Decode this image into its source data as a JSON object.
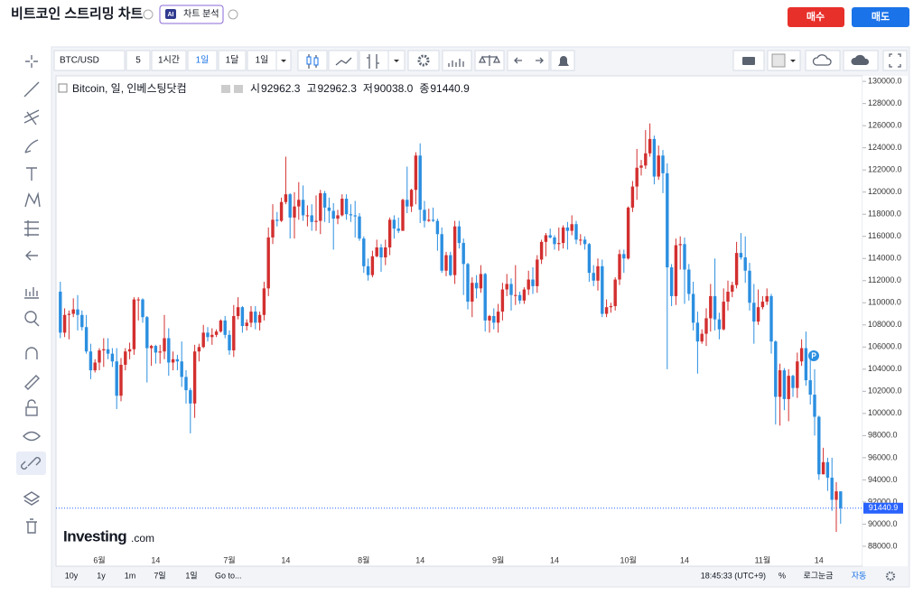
{
  "header": {
    "title": "비트코인 스트리밍 차트",
    "ai_badge": "AI",
    "ai_button": "차트 분석",
    "buy": "매수",
    "sell": "매도"
  },
  "toolbar": {
    "symbol": "BTC/USD",
    "intervals": [
      "5",
      "1시간",
      "1일",
      "1달",
      "1일"
    ]
  },
  "footer": {
    "ranges": [
      "10y",
      "1y",
      "1m",
      "7일",
      "1일"
    ],
    "goto": "Go to...",
    "time": "18:45:33 (UTC+9)",
    "percent": "%",
    "log": "로그눈금",
    "auto": "자동"
  },
  "chart_data": {
    "type": "candlestick",
    "title": "Bitcoin, 일, 인베스팅닷컴",
    "ohlc_legend": [
      {
        "name": "시",
        "label": "92962.3"
      },
      {
        "name": "고",
        "label": "92962.3"
      },
      {
        "name": "저",
        "label": "90038.0"
      },
      {
        "name": "종",
        "label": "91440.9"
      }
    ],
    "logo": {
      "main": "Investing",
      "suffix": ".com"
    },
    "up_color": "#d32f2f",
    "down_color": "#2b8fe0",
    "grid": false,
    "ylim": [
      86200,
      130500
    ],
    "yticks": [
      {
        "value": 88000,
        "label": "88000.0"
      },
      {
        "value": 90000,
        "label": "90000.0"
      },
      {
        "value": 92000,
        "label": "92000.0"
      },
      {
        "value": 94000,
        "label": "94000.0"
      },
      {
        "value": 96000,
        "label": "96000.0"
      },
      {
        "value": 98000,
        "label": "98000.0"
      },
      {
        "value": 100000,
        "label": "100000.0"
      },
      {
        "value": 102000,
        "label": "102000.0"
      },
      {
        "value": 104000,
        "label": "104000.0"
      },
      {
        "value": 106000,
        "label": "106000.0"
      },
      {
        "value": 108000,
        "label": "108000.0"
      },
      {
        "value": 110000,
        "label": "110000.0"
      },
      {
        "value": 112000,
        "label": "112000.0"
      },
      {
        "value": 114000,
        "label": "114000.0"
      },
      {
        "value": 116000,
        "label": "116000.0"
      },
      {
        "value": 118000,
        "label": "118000.0"
      },
      {
        "value": 120000,
        "label": "120000.0"
      },
      {
        "value": 122000,
        "label": "122000.0"
      },
      {
        "value": 124000,
        "label": "124000.0"
      },
      {
        "value": 126000,
        "label": "126000.0"
      },
      {
        "value": 128000,
        "label": "128000.0"
      },
      {
        "value": 130000,
        "label": "130000.0"
      }
    ],
    "categories": [
      null,
      null,
      null,
      null,
      null,
      null,
      null,
      null,
      null,
      "6월",
      null,
      null,
      null,
      null,
      null,
      null,
      null,
      null,
      null,
      null,
      null,
      null,
      "14",
      null,
      null,
      null,
      null,
      null,
      null,
      null,
      null,
      null,
      null,
      null,
      null,
      null,
      null,
      null,
      null,
      "7월",
      null,
      null,
      null,
      null,
      null,
      null,
      null,
      null,
      null,
      null,
      null,
      null,
      "14",
      null,
      null,
      null,
      null,
      null,
      null,
      null,
      null,
      null,
      null,
      null,
      null,
      null,
      null,
      null,
      null,
      null,
      "8월",
      null,
      null,
      null,
      null,
      null,
      null,
      null,
      null,
      null,
      null,
      null,
      null,
      "14",
      null,
      null,
      null,
      null,
      null,
      null,
      null,
      null,
      null,
      null,
      null,
      null,
      null,
      null,
      null,
      null,
      null,
      "9월",
      null,
      null,
      null,
      null,
      null,
      null,
      null,
      null,
      null,
      null,
      null,
      null,
      "14",
      null,
      null,
      null,
      null,
      null,
      null,
      null,
      null,
      null,
      null,
      null,
      null,
      null,
      null,
      null,
      null,
      "10월",
      null,
      null,
      null,
      null,
      null,
      null,
      null,
      null,
      null,
      null,
      null,
      null,
      "14",
      null,
      null,
      null,
      null,
      null,
      null,
      null,
      null,
      null,
      null,
      null,
      null,
      null,
      null,
      null,
      null,
      null,
      "11월",
      null,
      null,
      null,
      null,
      null,
      null,
      null,
      null,
      null,
      null,
      null,
      null,
      "14",
      null,
      null,
      null,
      null,
      null
    ],
    "open": [
      111000,
      107300,
      108900,
      109000,
      109400,
      108900,
      107800,
      105600,
      103900,
      104600,
      105700,
      105800,
      105400,
      104700,
      101600,
      104400,
      105600,
      105800,
      110300,
      110300,
      108700,
      105900,
      106100,
      105500,
      105600,
      106800,
      104600,
      104900,
      104700,
      103300,
      102100,
      100900,
      105600,
      106000,
      107300,
      106900,
      107100,
      107400,
      108400,
      107100,
      105700,
      108800,
      109600,
      107900,
      108200,
      109200,
      108200,
      108900,
      111300,
      115900,
      117500,
      117400,
      119100,
      119800,
      117700,
      118700,
      119300,
      117900,
      117900,
      117300,
      117400,
      119900,
      118600,
      118300,
      117600,
      117900,
      119400,
      118000,
      117900,
      117800,
      115800,
      113300,
      112500,
      114200,
      115000,
      114100,
      115000,
      117500,
      116700,
      116500,
      119300,
      118700,
      120200,
      123300,
      118400,
      117400,
      117500,
      117400,
      116200,
      112900,
      114300,
      112500,
      116900,
      115400,
      113500,
      110100,
      111800,
      111300,
      112600,
      108400,
      108800,
      108200,
      109200,
      111200,
      111700,
      110700,
      110700,
      110200,
      111200,
      112100,
      111500,
      113900,
      115500,
      116100,
      115900,
      115300,
      115400,
      116800,
      116500,
      117100,
      115700,
      115700,
      115300,
      112700,
      112000,
      113300,
      109000,
      109600,
      109700,
      112100,
      114400,
      114000,
      118600,
      120500,
      122200,
      122400,
      123500,
      124800,
      121400,
      123300,
      121700,
      113200,
      110600,
      115200,
      115300,
      113000,
      110800,
      108200,
      106500,
      107200,
      108600,
      110600,
      108500,
      107600,
      110100,
      111000,
      111600,
      114500,
      114100,
      112900,
      110000,
      108300,
      109600,
      110100,
      110600,
      106500,
      101500,
      103900,
      101300,
      103400,
      102300,
      104700,
      105900,
      103000,
      101700,
      99700,
      94500,
      95600,
      94200,
      92200,
      92962.3
    ],
    "high": [
      111900,
      109500,
      109300,
      110400,
      110700,
      109300,
      108900,
      106300,
      104900,
      105900,
      106800,
      106800,
      105900,
      105900,
      105000,
      105900,
      106400,
      110500,
      110500,
      110400,
      108800,
      106200,
      106200,
      106200,
      108900,
      107700,
      105600,
      105300,
      106500,
      103900,
      102300,
      106200,
      106300,
      108000,
      107800,
      107700,
      107600,
      108500,
      108800,
      107500,
      109800,
      110500,
      109700,
      108500,
      109700,
      109700,
      109200,
      111900,
      116800,
      118900,
      118200,
      119500,
      123200,
      119900,
      120000,
      120900,
      120600,
      118800,
      118900,
      119700,
      120200,
      120100,
      119500,
      119000,
      118400,
      119800,
      119800,
      118900,
      119200,
      118100,
      116000,
      114000,
      114700,
      115700,
      115300,
      115700,
      117700,
      117900,
      117700,
      119400,
      122300,
      120300,
      123600,
      124400,
      119200,
      118500,
      118600,
      117600,
      116800,
      114600,
      114600,
      117400,
      117400,
      115800,
      113600,
      112300,
      112500,
      113400,
      112700,
      108900,
      109500,
      109900,
      111800,
      112600,
      112200,
      113400,
      111000,
      111400,
      112900,
      113200,
      114300,
      115700,
      116300,
      116700,
      116100,
      116800,
      117000,
      117300,
      117900,
      117400,
      116200,
      116000,
      115400,
      113400,
      114000,
      113900,
      110300,
      110000,
      112300,
      114800,
      114800,
      118700,
      121000,
      123900,
      122900,
      125600,
      126200,
      125100,
      124200,
      123800,
      122600,
      113500,
      115800,
      116000,
      115900,
      113500,
      111900,
      109200,
      107600,
      109500,
      111700,
      114000,
      109100,
      111300,
      112000,
      111900,
      115500,
      116300,
      116000,
      113600,
      111700,
      111200,
      110600,
      111300,
      110800,
      106600,
      104500,
      104100,
      104000,
      103500,
      105500,
      106700,
      107400,
      105300,
      104000,
      99800,
      96900,
      96000,
      96000,
      93800,
      92962.3
    ],
    "low": [
      106800,
      106900,
      106700,
      108700,
      107500,
      107500,
      105400,
      103100,
      103700,
      103900,
      104200,
      104900,
      104200,
      100400,
      101100,
      103900,
      104900,
      105300,
      108400,
      108200,
      102800,
      104300,
      104500,
      104500,
      104900,
      103400,
      103900,
      103900,
      102400,
      100900,
      98200,
      99600,
      104700,
      105900,
      106500,
      106200,
      106900,
      107300,
      106800,
      105300,
      105100,
      108500,
      107300,
      107500,
      107800,
      107600,
      107500,
      108400,
      110600,
      115300,
      116900,
      117300,
      118900,
      115800,
      115800,
      117500,
      117400,
      116900,
      116500,
      116500,
      116200,
      117300,
      117200,
      114800,
      117100,
      117800,
      117500,
      117300,
      115900,
      115600,
      112700,
      112000,
      112300,
      114100,
      112800,
      113400,
      114300,
      115800,
      116300,
      116500,
      118100,
      118200,
      118900,
      117200,
      116800,
      117300,
      117300,
      114700,
      112700,
      112400,
      112400,
      111700,
      114900,
      110700,
      109400,
      108700,
      110400,
      110900,
      107400,
      107300,
      107600,
      107300,
      108400,
      110600,
      109300,
      109800,
      109900,
      109900,
      110700,
      110800,
      110900,
      113500,
      114200,
      115800,
      114800,
      114700,
      114900,
      114800,
      116100,
      115300,
      115200,
      114800,
      111900,
      111500,
      111100,
      108700,
      108700,
      109100,
      109300,
      111600,
      112700,
      113900,
      118200,
      119300,
      121500,
      122100,
      123200,
      120700,
      121100,
      119900,
      104000,
      109700,
      109800,
      113000,
      109900,
      110200,
      107500,
      103600,
      106300,
      106100,
      107400,
      107500,
      106700,
      107500,
      109300,
      110500,
      111300,
      113900,
      111800,
      109300,
      106300,
      108000,
      109400,
      109800,
      105400,
      99000,
      98900,
      100300,
      99300,
      101500,
      101400,
      104300,
      102500,
      100800,
      98000,
      94000,
      94500,
      93000,
      91200,
      89300,
      90038
    ],
    "close": [
      107300,
      108900,
      109000,
      109400,
      108900,
      107800,
      105600,
      103900,
      104600,
      105700,
      105800,
      105400,
      104700,
      101600,
      104400,
      105600,
      105800,
      110300,
      110300,
      108700,
      105900,
      106100,
      105500,
      105600,
      106800,
      104600,
      104900,
      104700,
      103300,
      102100,
      100900,
      105600,
      106000,
      107300,
      106900,
      107100,
      107400,
      108400,
      107100,
      105700,
      108800,
      109600,
      107900,
      108200,
      109200,
      108200,
      108900,
      111300,
      115900,
      117500,
      117400,
      119100,
      119800,
      117700,
      118700,
      119300,
      117900,
      117900,
      117300,
      117400,
      119900,
      118600,
      118300,
      117600,
      117900,
      119400,
      118000,
      117900,
      117800,
      115800,
      113300,
      112500,
      114200,
      115000,
      114100,
      115000,
      117500,
      116700,
      116500,
      119300,
      118700,
      120200,
      123300,
      118400,
      117400,
      117500,
      117400,
      116200,
      112900,
      114300,
      112500,
      116900,
      115400,
      113500,
      110100,
      111800,
      111300,
      112600,
      108400,
      108800,
      108200,
      109200,
      111200,
      111700,
      110700,
      110700,
      110200,
      111200,
      112100,
      111500,
      113900,
      115500,
      116100,
      115900,
      115300,
      115400,
      116800,
      116500,
      117100,
      115700,
      115700,
      115300,
      112700,
      112000,
      113300,
      109000,
      109600,
      109700,
      112100,
      114400,
      114000,
      118600,
      120500,
      122200,
      122400,
      123500,
      124800,
      121400,
      123300,
      121700,
      113200,
      110600,
      115200,
      115300,
      113000,
      110800,
      108200,
      106500,
      107200,
      108600,
      110600,
      108500,
      107600,
      110100,
      111000,
      111600,
      114500,
      114100,
      112900,
      110000,
      108300,
      109600,
      110100,
      110600,
      106500,
      101500,
      103900,
      101300,
      103400,
      102300,
      104700,
      105900,
      103000,
      101700,
      99700,
      94500,
      95600,
      94200,
      92200,
      92962.3,
      91440.9
    ]
  }
}
